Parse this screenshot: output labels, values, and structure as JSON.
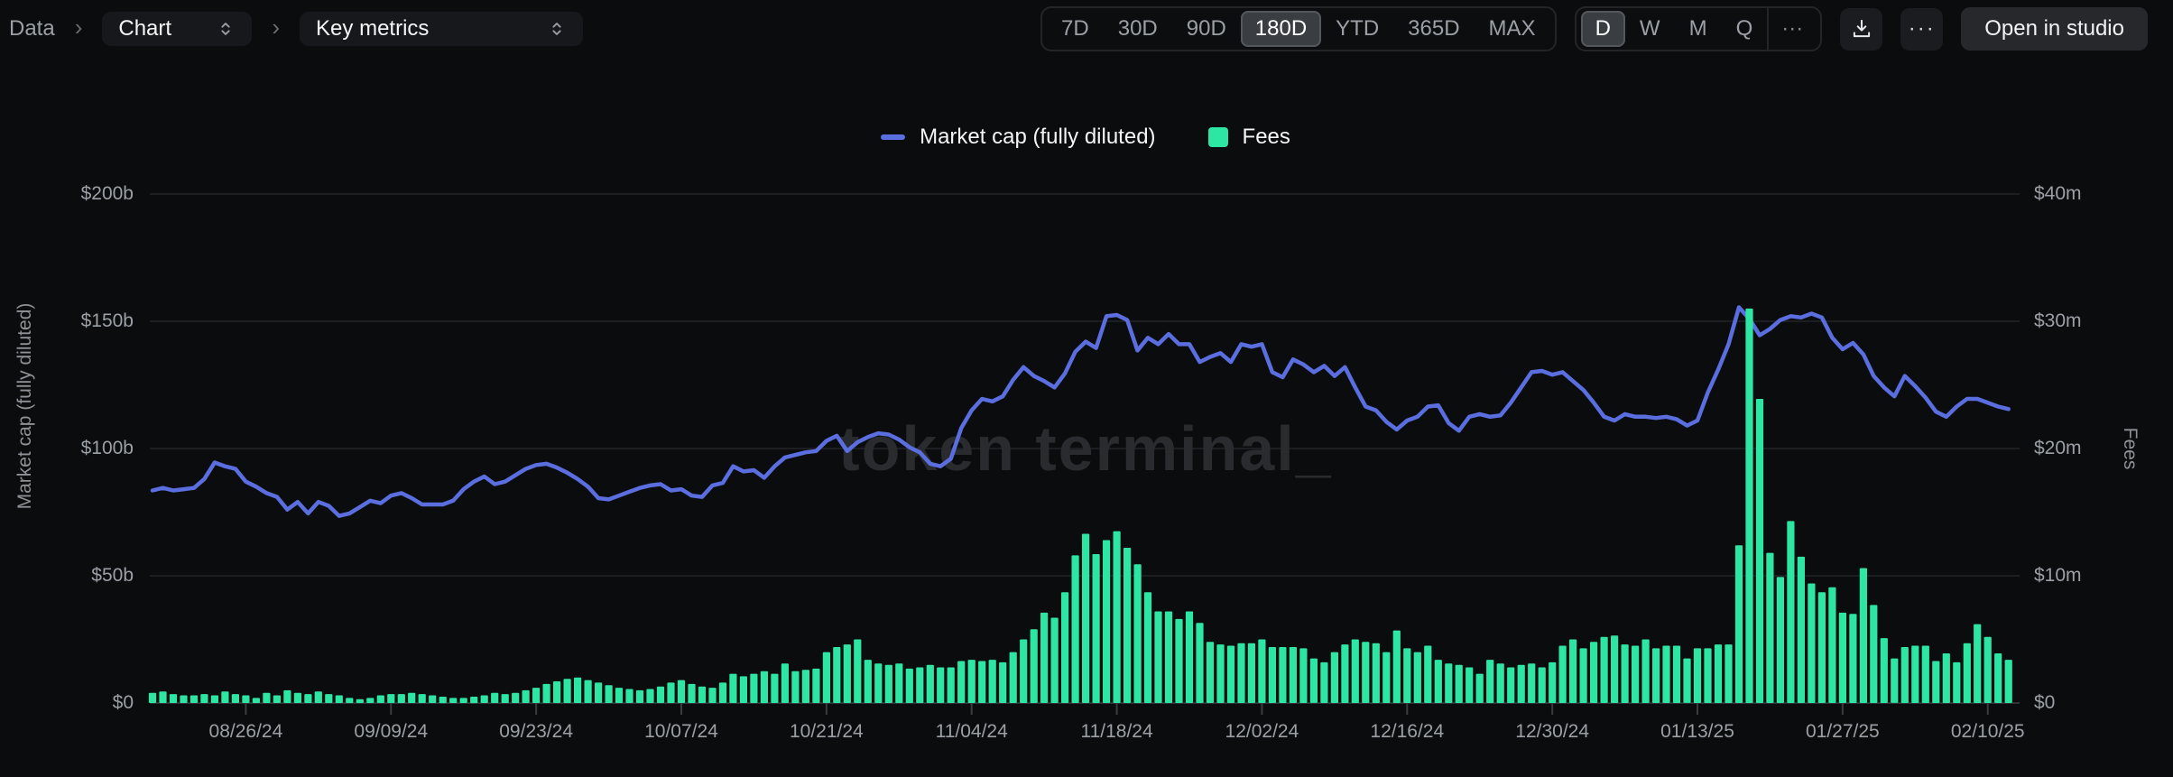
{
  "breadcrumb": {
    "root": "Data",
    "separator": "›",
    "chart_select": "Chart",
    "metric_select": "Key metrics"
  },
  "toolbar": {
    "ranges": [
      "7D",
      "30D",
      "90D",
      "180D",
      "YTD",
      "365D",
      "MAX"
    ],
    "active_range": "180D",
    "granularities": [
      "D",
      "W",
      "M",
      "Q",
      "···"
    ],
    "active_granularity": "D",
    "more_label": "···",
    "open_in_studio": "Open in studio"
  },
  "legend": [
    {
      "label": "Market cap (fully diluted)",
      "color": "#5a6ee0",
      "type": "line"
    },
    {
      "label": "Fees",
      "color": "#2ee6a4",
      "type": "bar"
    }
  ],
  "chart_data": {
    "type": "line+bar",
    "title": "",
    "watermark": "token terminal_",
    "start_date": "08/17/24",
    "granularity": "daily",
    "left_axis": {
      "title": "Market cap (fully diluted)",
      "unit": "$b",
      "range": [
        0,
        200
      ],
      "tick_values": [
        0,
        50,
        100,
        150,
        200
      ],
      "ticks": [
        "$0",
        "$50b",
        "$100b",
        "$150b",
        "$200b"
      ]
    },
    "right_axis": {
      "title": "Fees",
      "unit": "$m",
      "range": [
        0,
        40
      ],
      "tick_values": [
        0,
        10,
        20,
        30,
        40
      ],
      "ticks": [
        "$0",
        "$10m",
        "$20m",
        "$30m",
        "$40m"
      ]
    },
    "x_axis": {
      "tick_days": [
        9,
        23,
        37,
        51,
        65,
        79,
        93,
        107,
        121,
        135,
        149,
        163,
        177
      ],
      "tick_labels": [
        "08/26/24",
        "09/09/24",
        "09/23/24",
        "10/07/24",
        "10/21/24",
        "11/04/24",
        "11/18/24",
        "12/02/24",
        "12/16/24",
        "12/30/24",
        "01/13/25",
        "01/27/25",
        "02/10/25"
      ]
    },
    "series": [
      {
        "name": "Market cap (fully diluted)",
        "type": "line",
        "axis": "left",
        "unit": "$b",
        "color": "#5a6ee0",
        "values": [
          83.5,
          84.5,
          83.5,
          84,
          84.5,
          88,
          94.5,
          93,
          92,
          87,
          85,
          82.5,
          81,
          76,
          79,
          74.5,
          79,
          77.5,
          73.5,
          74.5,
          77,
          79.5,
          78.5,
          81.5,
          82.5,
          80.5,
          78,
          78,
          78,
          79.5,
          84,
          87,
          89,
          86,
          87,
          89.5,
          92,
          93.5,
          94,
          92.5,
          90.5,
          88,
          85,
          80.5,
          80,
          81.5,
          83,
          84.5,
          85.5,
          86,
          83.5,
          84,
          81.5,
          81,
          85.5,
          86.5,
          93,
          91,
          91.5,
          88.5,
          93,
          96.5,
          97.5,
          98.5,
          99,
          103,
          105,
          99,
          102.5,
          104.5,
          106,
          105.5,
          103.5,
          100.5,
          98.5,
          94,
          93,
          96,
          108,
          115,
          119.5,
          118.5,
          120.5,
          127,
          132,
          128.5,
          126.5,
          124,
          129.5,
          138,
          142,
          139.5,
          152,
          152.5,
          150.5,
          138.5,
          143.5,
          141,
          145,
          141,
          141,
          134,
          136,
          137.5,
          134,
          141,
          140,
          141,
          130,
          128,
          135,
          133,
          130,
          132.5,
          128.5,
          132,
          124,
          116.5,
          115,
          110.5,
          107.5,
          111,
          112.5,
          116.5,
          117,
          110,
          107,
          112.5,
          113.5,
          112.5,
          113,
          118,
          124,
          130,
          130.5,
          129,
          130,
          126.5,
          123,
          118,
          112.5,
          111,
          113.5,
          112.5,
          112.5,
          112,
          112.5,
          111.5,
          109,
          111,
          122,
          131,
          141,
          155.5,
          151,
          144.5,
          147,
          150.5,
          152,
          151.5,
          153,
          151.5,
          143.5,
          139,
          141.5,
          137,
          128.5,
          124,
          120.5,
          128.5,
          124.5,
          120,
          114.5,
          112.5,
          116.5,
          119.5,
          119.5,
          118,
          116.5,
          115.5
        ]
      },
      {
        "name": "Fees",
        "type": "bar",
        "axis": "right",
        "unit": "$m",
        "color": "#2ee6a4",
        "values": [
          0.8,
          0.9,
          0.7,
          0.6,
          0.6,
          0.7,
          0.6,
          0.9,
          0.7,
          0.6,
          0.4,
          0.8,
          0.6,
          1.0,
          0.8,
          0.7,
          0.9,
          0.7,
          0.6,
          0.4,
          0.3,
          0.4,
          0.6,
          0.7,
          0.7,
          0.8,
          0.7,
          0.6,
          0.5,
          0.4,
          0.4,
          0.5,
          0.6,
          0.8,
          0.7,
          0.8,
          1.0,
          1.2,
          1.5,
          1.7,
          1.9,
          2.0,
          1.8,
          1.6,
          1.4,
          1.2,
          1.1,
          1.0,
          1.1,
          1.3,
          1.6,
          1.8,
          1.5,
          1.3,
          1.2,
          1.6,
          2.3,
          2.1,
          2.3,
          2.5,
          2.3,
          3.1,
          2.5,
          2.6,
          2.7,
          4.0,
          4.4,
          4.6,
          5.0,
          3.4,
          3.1,
          3.0,
          3.1,
          2.7,
          2.8,
          3.0,
          2.8,
          2.8,
          3.3,
          3.4,
          3.3,
          3.4,
          3.2,
          4.0,
          5.0,
          5.8,
          7.1,
          6.7,
          8.7,
          11.6,
          13.3,
          11.7,
          12.8,
          13.5,
          12.2,
          10.9,
          8.7,
          7.2,
          7.2,
          6.6,
          7.2,
          6.3,
          4.8,
          4.6,
          4.5,
          4.7,
          4.7,
          5.0,
          4.4,
          4.4,
          4.4,
          4.3,
          3.5,
          3.2,
          4.0,
          4.6,
          5.0,
          4.8,
          4.7,
          4.0,
          5.7,
          4.3,
          4.0,
          4.5,
          3.4,
          3.1,
          3.0,
          2.8,
          2.3,
          3.4,
          3.1,
          2.8,
          3.0,
          3.1,
          2.8,
          3.2,
          4.5,
          5.0,
          4.3,
          4.8,
          5.2,
          5.3,
          4.6,
          4.5,
          5.0,
          4.3,
          4.5,
          4.5,
          3.5,
          4.3,
          4.3,
          4.6,
          4.6,
          12.4,
          31.0,
          23.9,
          11.8,
          9.9,
          14.3,
          11.5,
          9.4,
          8.7,
          9.1,
          7.1,
          7.0,
          10.6,
          7.7,
          5.1,
          3.5,
          4.4,
          4.5,
          4.5,
          3.3,
          3.9,
          3.2,
          4.7,
          6.2,
          5.2,
          3.9,
          3.4
        ]
      }
    ],
    "grid": {
      "color": "#222428",
      "baseline_color": "#303236"
    }
  }
}
